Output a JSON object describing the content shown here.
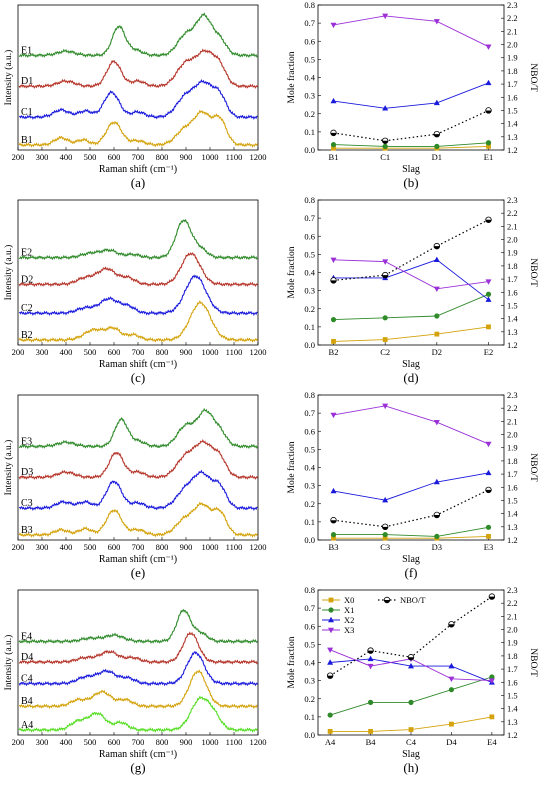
{
  "figure": {
    "panel_labels": [
      "(a)",
      "(b)",
      "(c)",
      "(d)",
      "(e)",
      "(f)",
      "(g)",
      "(h)"
    ]
  },
  "chart_data": [
    {
      "id": "a",
      "type": "line",
      "xlabel": "Raman shift (cm⁻¹)",
      "ylabel": "Intensity (a.u.)",
      "xlim": [
        200,
        1200
      ],
      "xticks": [
        200,
        300,
        400,
        500,
        600,
        700,
        800,
        900,
        1000,
        1100,
        1200
      ],
      "series": [
        {
          "name": "B1",
          "color": "#d4a20a",
          "offset": 0.0,
          "peaks": [
            [
              380,
              0.07,
              40
            ],
            [
              470,
              0.05,
              35
            ],
            [
              600,
              0.22,
              45
            ],
            [
              700,
              0.04,
              40
            ],
            [
              900,
              0.16,
              55
            ],
            [
              970,
              0.28,
              45
            ],
            [
              1040,
              0.25,
              40
            ]
          ]
        },
        {
          "name": "C1",
          "color": "#1a1adc",
          "offset": 0.27,
          "peaks": [
            [
              380,
              0.07,
              45
            ],
            [
              480,
              0.06,
              40
            ],
            [
              590,
              0.24,
              45
            ],
            [
              700,
              0.05,
              40
            ],
            [
              900,
              0.2,
              55
            ],
            [
              975,
              0.3,
              50
            ],
            [
              1040,
              0.2,
              40
            ]
          ]
        },
        {
          "name": "D1",
          "color": "#b5352a",
          "offset": 0.57,
          "peaks": [
            [
              400,
              0.05,
              50
            ],
            [
              600,
              0.24,
              42
            ],
            [
              700,
              0.05,
              40
            ],
            [
              900,
              0.22,
              55
            ],
            [
              980,
              0.3,
              50
            ],
            [
              1040,
              0.18,
              40
            ]
          ]
        },
        {
          "name": "E1",
          "color": "#2f8a2a",
          "offset": 0.87,
          "peaks": [
            [
              400,
              0.04,
              50
            ],
            [
              620,
              0.28,
              38
            ],
            [
              690,
              0.05,
              40
            ],
            [
              900,
              0.2,
              50
            ],
            [
              975,
              0.36,
              45
            ],
            [
              1040,
              0.15,
              40
            ]
          ]
        }
      ]
    },
    {
      "id": "b",
      "type": "line",
      "xlabel": "Slag",
      "ylabel": "Mole fraction",
      "ylabel_right": "NBO/T",
      "categories": [
        "B1",
        "C1",
        "D1",
        "E1"
      ],
      "ylim": [
        0.0,
        0.8
      ],
      "yticks": [
        0.0,
        0.1,
        0.2,
        0.3,
        0.4,
        0.5,
        0.6,
        0.7,
        0.8
      ],
      "y2lim": [
        1.2,
        2.3
      ],
      "y2ticks": [
        1.2,
        1.3,
        1.4,
        1.5,
        1.6,
        1.7,
        1.8,
        1.9,
        2.0,
        2.1,
        2.2,
        2.3
      ],
      "series": [
        {
          "name": "X0",
          "color": "#d4a20a",
          "marker": "square",
          "values": [
            0.01,
            0.01,
            0.01,
            0.02
          ]
        },
        {
          "name": "X1",
          "color": "#2f8a2a",
          "marker": "circle",
          "values": [
            0.03,
            0.02,
            0.02,
            0.04
          ]
        },
        {
          "name": "X2",
          "color": "#1a1adc",
          "marker": "triangle-up",
          "values": [
            0.27,
            0.23,
            0.26,
            0.37
          ]
        },
        {
          "name": "X3",
          "color": "#9b30d9",
          "marker": "triangle-down",
          "values": [
            0.69,
            0.74,
            0.71,
            0.57
          ]
        },
        {
          "name": "NBO/T",
          "color": "#000000",
          "marker": "circle-half",
          "axis": "right",
          "dotted": true,
          "values": [
            1.33,
            1.27,
            1.32,
            1.5
          ]
        }
      ]
    },
    {
      "id": "c",
      "type": "line",
      "xlabel": "Raman shift (cm⁻¹)",
      "ylabel": "Intensity (a.u.)",
      "xlim": [
        200,
        1200
      ],
      "xticks": [
        200,
        300,
        400,
        500,
        600,
        700,
        800,
        900,
        1000,
        1100,
        1200
      ],
      "series": [
        {
          "name": "B2",
          "color": "#d4a20a",
          "offset": 0.0,
          "peaks": [
            [
              520,
              0.1,
              60
            ],
            [
              600,
              0.1,
              40
            ],
            [
              680,
              0.05,
              40
            ],
            [
              960,
              0.36,
              60
            ]
          ]
        },
        {
          "name": "C2",
          "color": "#1a1adc",
          "offset": 0.26,
          "peaks": [
            [
              480,
              0.05,
              50
            ],
            [
              580,
              0.14,
              55
            ],
            [
              660,
              0.06,
              40
            ],
            [
              940,
              0.36,
              60
            ]
          ]
        },
        {
          "name": "D2",
          "color": "#b5352a",
          "offset": 0.54,
          "peaks": [
            [
              480,
              0.06,
              50
            ],
            [
              570,
              0.15,
              55
            ],
            [
              660,
              0.06,
              40
            ],
            [
              920,
              0.3,
              55
            ]
          ]
        },
        {
          "name": "E2",
          "color": "#2f8a2a",
          "offset": 0.8,
          "peaks": [
            [
              500,
              0.04,
              50
            ],
            [
              580,
              0.07,
              50
            ],
            [
              680,
              0.03,
              40
            ],
            [
              890,
              0.36,
              45
            ],
            [
              960,
              0.08,
              40
            ]
          ]
        }
      ]
    },
    {
      "id": "d",
      "type": "line",
      "xlabel": "Slag",
      "ylabel": "Mole fraction",
      "ylabel_right": "NBO/T",
      "categories": [
        "B2",
        "C2",
        "D2",
        "E2"
      ],
      "ylim": [
        0.0,
        0.8
      ],
      "yticks": [
        0.0,
        0.1,
        0.2,
        0.3,
        0.4,
        0.5,
        0.6,
        0.7,
        0.8
      ],
      "y2lim": [
        1.2,
        2.3
      ],
      "y2ticks": [
        1.2,
        1.3,
        1.4,
        1.5,
        1.6,
        1.7,
        1.8,
        1.9,
        2.0,
        2.1,
        2.2,
        2.3
      ],
      "series": [
        {
          "name": "X0",
          "color": "#d4a20a",
          "marker": "square",
          "values": [
            0.02,
            0.03,
            0.06,
            0.1
          ]
        },
        {
          "name": "X1",
          "color": "#2f8a2a",
          "marker": "circle",
          "values": [
            0.14,
            0.15,
            0.16,
            0.28
          ]
        },
        {
          "name": "X2",
          "color": "#1a1adc",
          "marker": "triangle-up",
          "values": [
            0.37,
            0.37,
            0.47,
            0.25
          ]
        },
        {
          "name": "X3",
          "color": "#9b30d9",
          "marker": "triangle-down",
          "values": [
            0.47,
            0.46,
            0.31,
            0.35
          ]
        },
        {
          "name": "NBO/T",
          "color": "#000000",
          "marker": "circle-half",
          "axis": "right",
          "dotted": true,
          "values": [
            1.69,
            1.73,
            1.95,
            2.15
          ]
        }
      ]
    },
    {
      "id": "e",
      "type": "line",
      "xlabel": "Raman shift (cm⁻¹)",
      "ylabel": "Intensity (a.u.)",
      "xlim": [
        200,
        1200
      ],
      "xticks": [
        200,
        300,
        400,
        500,
        600,
        700,
        800,
        900,
        1000,
        1100,
        1200
      ],
      "series": [
        {
          "name": "B3",
          "color": "#d4a20a",
          "offset": 0.0,
          "peaks": [
            [
              380,
              0.05,
              40
            ],
            [
              480,
              0.06,
              40
            ],
            [
              600,
              0.24,
              45
            ],
            [
              700,
              0.05,
              40
            ],
            [
              900,
              0.16,
              55
            ],
            [
              970,
              0.26,
              45
            ],
            [
              1040,
              0.22,
              40
            ]
          ]
        },
        {
          "name": "C3",
          "color": "#1a1adc",
          "offset": 0.26,
          "peaks": [
            [
              390,
              0.06,
              45
            ],
            [
              480,
              0.06,
              40
            ],
            [
              600,
              0.26,
              45
            ],
            [
              700,
              0.05,
              40
            ],
            [
              900,
              0.18,
              55
            ],
            [
              970,
              0.3,
              50
            ],
            [
              1040,
              0.2,
              40
            ]
          ]
        },
        {
          "name": "D3",
          "color": "#b5352a",
          "offset": 0.56,
          "peaks": [
            [
              400,
              0.05,
              50
            ],
            [
              610,
              0.24,
              42
            ],
            [
              700,
              0.05,
              40
            ],
            [
              900,
              0.2,
              55
            ],
            [
              975,
              0.3,
              50
            ],
            [
              1040,
              0.18,
              40
            ]
          ]
        },
        {
          "name": "E3",
          "color": "#2f8a2a",
          "offset": 0.86,
          "peaks": [
            [
              400,
              0.04,
              50
            ],
            [
              630,
              0.26,
              38
            ],
            [
              700,
              0.05,
              40
            ],
            [
              900,
              0.2,
              50
            ],
            [
              980,
              0.32,
              45
            ],
            [
              1040,
              0.14,
              40
            ]
          ]
        }
      ]
    },
    {
      "id": "f",
      "type": "line",
      "xlabel": "Slag",
      "ylabel": "Mole fraction",
      "ylabel_right": "NBO/T",
      "categories": [
        "B3",
        "C3",
        "D3",
        "E3"
      ],
      "ylim": [
        0.0,
        0.8
      ],
      "yticks": [
        0.0,
        0.1,
        0.2,
        0.3,
        0.4,
        0.5,
        0.6,
        0.7,
        0.8
      ],
      "y2lim": [
        1.2,
        2.3
      ],
      "y2ticks": [
        1.2,
        1.3,
        1.4,
        1.5,
        1.6,
        1.7,
        1.8,
        1.9,
        2.0,
        2.1,
        2.2,
        2.3
      ],
      "series": [
        {
          "name": "X0",
          "color": "#d4a20a",
          "marker": "square",
          "values": [
            0.01,
            0.01,
            0.01,
            0.02
          ]
        },
        {
          "name": "X1",
          "color": "#2f8a2a",
          "marker": "circle",
          "values": [
            0.03,
            0.03,
            0.02,
            0.07
          ]
        },
        {
          "name": "X2",
          "color": "#1a1adc",
          "marker": "triangle-up",
          "values": [
            0.27,
            0.22,
            0.32,
            0.37
          ]
        },
        {
          "name": "X3",
          "color": "#9b30d9",
          "marker": "triangle-down",
          "values": [
            0.69,
            0.74,
            0.65,
            0.53
          ]
        },
        {
          "name": "NBO/T",
          "color": "#000000",
          "marker": "circle-half",
          "axis": "right",
          "dotted": true,
          "values": [
            1.35,
            1.3,
            1.39,
            1.58
          ]
        }
      ]
    },
    {
      "id": "g",
      "type": "line",
      "xlabel": "Raman shift (cm⁻¹)",
      "ylabel": "Intensity (a.u.)",
      "xlim": [
        200,
        1200
      ],
      "xticks": [
        200,
        300,
        400,
        500,
        600,
        700,
        800,
        900,
        1000,
        1100,
        1200
      ],
      "series": [
        {
          "name": "A4",
          "color": "#55dd22",
          "offset": 0.0,
          "peaks": [
            [
              450,
              0.08,
              45
            ],
            [
              530,
              0.16,
              50
            ],
            [
              630,
              0.07,
              40
            ],
            [
              960,
              0.3,
              55
            ],
            [
              1020,
              0.1,
              40
            ]
          ]
        },
        {
          "name": "B4",
          "color": "#d4a20a",
          "offset": 0.23,
          "peaks": [
            [
              450,
              0.06,
              45
            ],
            [
              550,
              0.14,
              55
            ],
            [
              650,
              0.06,
              40
            ],
            [
              950,
              0.34,
              50
            ]
          ]
        },
        {
          "name": "C4",
          "color": "#1a1adc",
          "offset": 0.45,
          "peaks": [
            [
              480,
              0.06,
              50
            ],
            [
              570,
              0.12,
              55
            ],
            [
              660,
              0.05,
              40
            ],
            [
              940,
              0.3,
              50
            ]
          ]
        },
        {
          "name": "D4",
          "color": "#b5352a",
          "offset": 0.66,
          "peaks": [
            [
              480,
              0.04,
              50
            ],
            [
              580,
              0.1,
              55
            ],
            [
              680,
              0.04,
              40
            ],
            [
              920,
              0.28,
              45
            ]
          ]
        },
        {
          "name": "E4",
          "color": "#2f8a2a",
          "offset": 0.86,
          "peaks": [
            [
              500,
              0.03,
              50
            ],
            [
              600,
              0.06,
              55
            ],
            [
              890,
              0.3,
              40
            ],
            [
              960,
              0.08,
              40
            ]
          ]
        }
      ]
    },
    {
      "id": "h",
      "type": "line",
      "xlabel": "Slag",
      "ylabel": "Mole fraction",
      "ylabel_right": "NBO/T",
      "categories": [
        "A4",
        "B4",
        "C4",
        "D4",
        "E4"
      ],
      "ylim": [
        0.0,
        0.8
      ],
      "yticks": [
        0.0,
        0.1,
        0.2,
        0.3,
        0.4,
        0.5,
        0.6,
        0.7,
        0.8
      ],
      "y2lim": [
        1.2,
        2.3
      ],
      "y2ticks": [
        1.2,
        1.3,
        1.4,
        1.5,
        1.6,
        1.7,
        1.8,
        1.9,
        2.0,
        2.1,
        2.2,
        2.3
      ],
      "legend": {
        "placement": "top-left",
        "entries": [
          "X0",
          "NBO/T",
          "X1",
          "X2",
          "X3"
        ]
      },
      "series": [
        {
          "name": "X0",
          "color": "#d4a20a",
          "marker": "square",
          "values": [
            0.02,
            0.02,
            0.03,
            0.06,
            0.1
          ]
        },
        {
          "name": "X1",
          "color": "#2f8a2a",
          "marker": "circle",
          "values": [
            0.11,
            0.18,
            0.18,
            0.25,
            0.32
          ]
        },
        {
          "name": "X2",
          "color": "#1a1adc",
          "marker": "triangle-up",
          "values": [
            0.4,
            0.42,
            0.38,
            0.38,
            0.29
          ]
        },
        {
          "name": "X3",
          "color": "#9b30d9",
          "marker": "triangle-down",
          "values": [
            0.47,
            0.38,
            0.42,
            0.31,
            0.3
          ]
        },
        {
          "name": "NBO/T",
          "color": "#000000",
          "marker": "circle-half",
          "axis": "right",
          "dotted": true,
          "values": [
            1.65,
            1.84,
            1.79,
            2.04,
            2.25
          ]
        }
      ]
    }
  ]
}
